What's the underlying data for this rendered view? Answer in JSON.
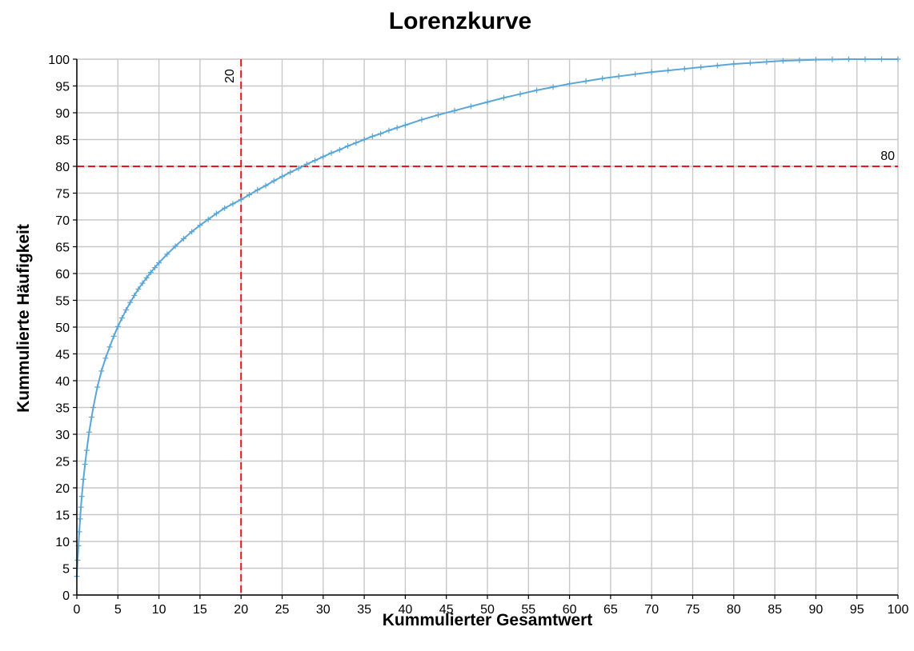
{
  "colors": {
    "series": "#5aa6d6",
    "reference": "#e8141b",
    "grid": "#c8c8c8",
    "axis": "#000000"
  },
  "chart_data": {
    "type": "line",
    "title": "Lorenzkurve",
    "xlabel": "Kummulierter Gesamtwert",
    "ylabel": "Kummulierte Häufigkeit",
    "xlim": [
      0,
      100
    ],
    "ylim": [
      0,
      100
    ],
    "x_ticks": [
      0,
      5,
      10,
      15,
      20,
      25,
      30,
      35,
      40,
      45,
      50,
      55,
      60,
      65,
      70,
      75,
      80,
      85,
      90,
      95,
      100
    ],
    "y_ticks": [
      0,
      5,
      10,
      15,
      20,
      25,
      30,
      35,
      40,
      45,
      50,
      55,
      60,
      65,
      70,
      75,
      80,
      85,
      90,
      95,
      100
    ],
    "grid": true,
    "marker": "plus",
    "series": [
      {
        "x": [
          0,
          0.1,
          0.2,
          0.3,
          0.4,
          0.5,
          0.6,
          0.8,
          1,
          1.2,
          1.5,
          1.8,
          2,
          2.5,
          3,
          3.5,
          4,
          4.5,
          5,
          5.5,
          6,
          6.5,
          7,
          7.5,
          8,
          8.5,
          9,
          9.5,
          10,
          11,
          12,
          13,
          14,
          15,
          16,
          17,
          18,
          19,
          20,
          21,
          22,
          23,
          24,
          25,
          26,
          27,
          28,
          29,
          30,
          31,
          32,
          33,
          34,
          35,
          36,
          37,
          38,
          39,
          40,
          42,
          44,
          46,
          48,
          50,
          52,
          54,
          56,
          58,
          60,
          62,
          64,
          66,
          68,
          70,
          72,
          74,
          76,
          78,
          80,
          82,
          84,
          86,
          88,
          90,
          92,
          94,
          96,
          98,
          100
        ],
        "y": [
          3.5,
          6.5,
          9.2,
          11.8,
          14.2,
          16.4,
          18.4,
          21.6,
          24.4,
          27.0,
          30.4,
          33.2,
          35.0,
          38.8,
          41.8,
          44.2,
          46.3,
          48.3,
          50.1,
          51.7,
          53.2,
          54.6,
          55.9,
          57.1,
          58.2,
          59.2,
          60.2,
          61.1,
          62.0,
          63.6,
          65.1,
          66.5,
          67.8,
          69.0,
          70.1,
          71.2,
          72.2,
          73.0,
          73.8,
          74.7,
          75.6,
          76.4,
          77.3,
          78.1,
          78.9,
          79.6,
          80.4,
          81.1,
          81.8,
          82.5,
          83.1,
          83.8,
          84.4,
          85.0,
          85.6,
          86.1,
          86.7,
          87.2,
          87.7,
          88.7,
          89.6,
          90.4,
          91.2,
          92.0,
          92.8,
          93.5,
          94.2,
          94.8,
          95.4,
          95.9,
          96.4,
          96.8,
          97.2,
          97.6,
          97.9,
          98.2,
          98.5,
          98.8,
          99.1,
          99.3,
          99.5,
          99.7,
          99.8,
          99.9,
          99.95,
          100,
          100,
          100,
          100
        ]
      }
    ],
    "reference_lines": [
      {
        "axis": "x",
        "value": 20,
        "label": "20"
      },
      {
        "axis": "y",
        "value": 80,
        "label": "80"
      }
    ]
  }
}
